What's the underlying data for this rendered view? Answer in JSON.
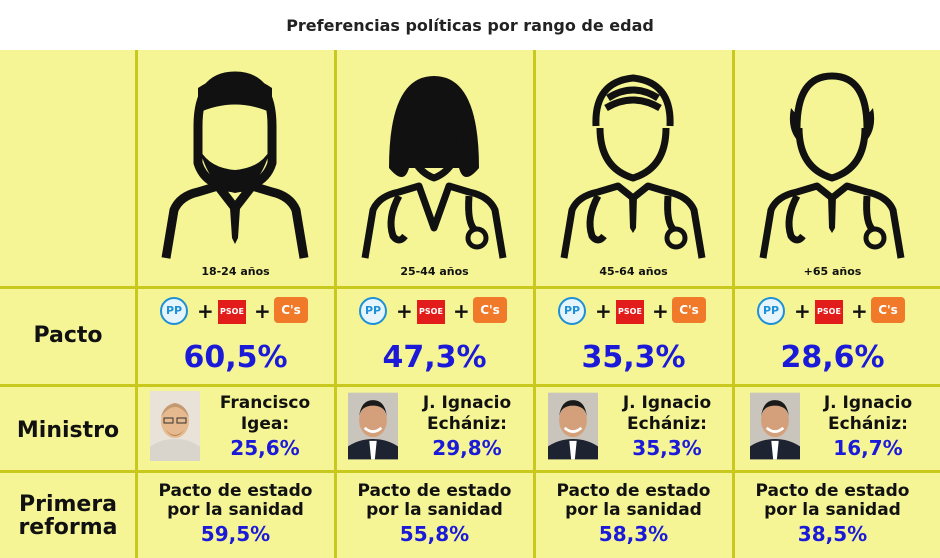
{
  "title": "Preferencias políticas por rango de edad",
  "row_labels": {
    "pacto": "Pacto",
    "ministro": "Ministro",
    "reforma_1": "Primera",
    "reforma_2": "reforma"
  },
  "logos": {
    "pp": "PP",
    "psoe": "PSOE",
    "cs": "C's",
    "plus": "+"
  },
  "colors": {
    "background": "#f5f595",
    "grid_line": "#c8c81f",
    "percent": "#1a1ad8",
    "pp": "#1e90d6",
    "psoe": "#e21b1b",
    "cs": "#f07a2a"
  },
  "columns": [
    {
      "age": "18-24 años",
      "icon": "bearded-man-icon",
      "pacto": "60,5%",
      "ministro_l1": "Francisco",
      "ministro_l2": "Igea:",
      "ministro_pct": "25,6%",
      "reforma_l1": "Pacto de estado",
      "reforma_l2": "por la sanidad",
      "reforma_pct": "59,5%"
    },
    {
      "age": "25-44 años",
      "icon": "female-doctor-icon",
      "pacto": "47,3%",
      "ministro_l1": "J. Ignacio",
      "ministro_l2": "Echániz:",
      "ministro_pct": "29,8%",
      "reforma_l1": "Pacto de estado",
      "reforma_l2": "por la sanidad",
      "reforma_pct": "55,8%"
    },
    {
      "age": "45-64 años",
      "icon": "male-doctor-icon",
      "pacto": "35,3%",
      "ministro_l1": "J. Ignacio",
      "ministro_l2": "Echániz:",
      "ministro_pct": "35,3%",
      "reforma_l1": "Pacto de estado",
      "reforma_l2": "por la sanidad",
      "reforma_pct": "58,3%"
    },
    {
      "age": "+65 años",
      "icon": "bald-doctor-icon",
      "pacto": "28,6%",
      "ministro_l1": "J. Ignacio",
      "ministro_l2": "Echániz:",
      "ministro_pct": "16,7%",
      "reforma_l1": "Pacto de estado",
      "reforma_l2": "por la sanidad",
      "reforma_pct": "38,5%"
    }
  ]
}
